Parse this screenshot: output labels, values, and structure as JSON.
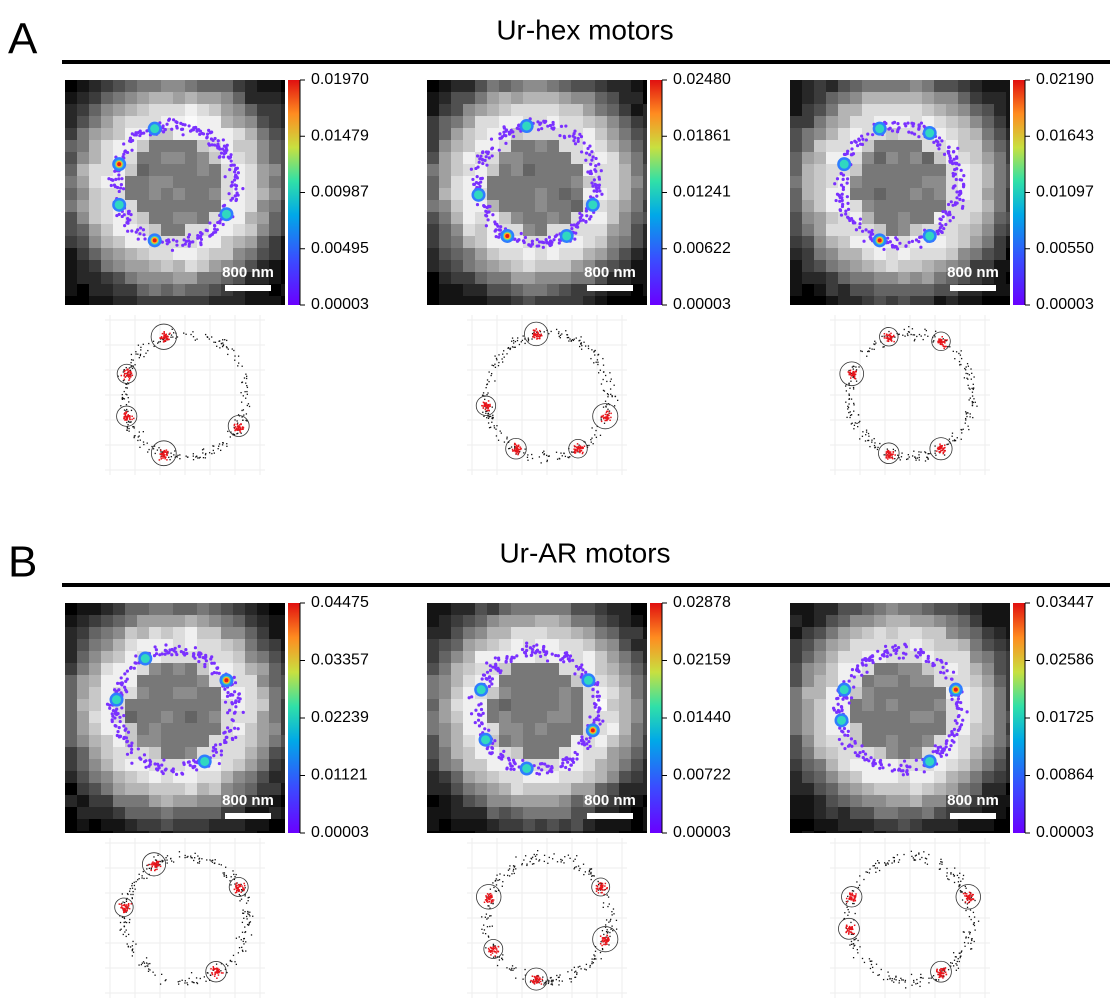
{
  "panels": [
    {
      "label": "A",
      "title": "Ur-hex motors",
      "images": [
        {
          "colorbar_ticks": [
            "0.01970",
            "0.01479",
            "0.00987",
            "0.00495",
            "0.00003"
          ],
          "scale_bar": "800 nm"
        },
        {
          "colorbar_ticks": [
            "0.02480",
            "0.01861",
            "0.01241",
            "0.00622",
            "0.00003"
          ],
          "scale_bar": "800 nm"
        },
        {
          "colorbar_ticks": [
            "0.02190",
            "0.01643",
            "0.01097",
            "0.00550",
            "0.00003"
          ],
          "scale_bar": "800 nm"
        }
      ]
    },
    {
      "label": "B",
      "title": "Ur-AR motors",
      "images": [
        {
          "colorbar_ticks": [
            "0.04475",
            "0.03357",
            "0.02239",
            "0.01121",
            "0.00003"
          ],
          "scale_bar": "800 nm"
        },
        {
          "colorbar_ticks": [
            "0.02878",
            "0.02159",
            "0.01440",
            "0.00722",
            "0.00003"
          ],
          "scale_bar": "800 nm"
        },
        {
          "colorbar_ticks": [
            "0.03447",
            "0.02586",
            "0.01725",
            "0.00864",
            "0.00003"
          ],
          "scale_bar": "800 nm"
        }
      ]
    }
  ]
}
